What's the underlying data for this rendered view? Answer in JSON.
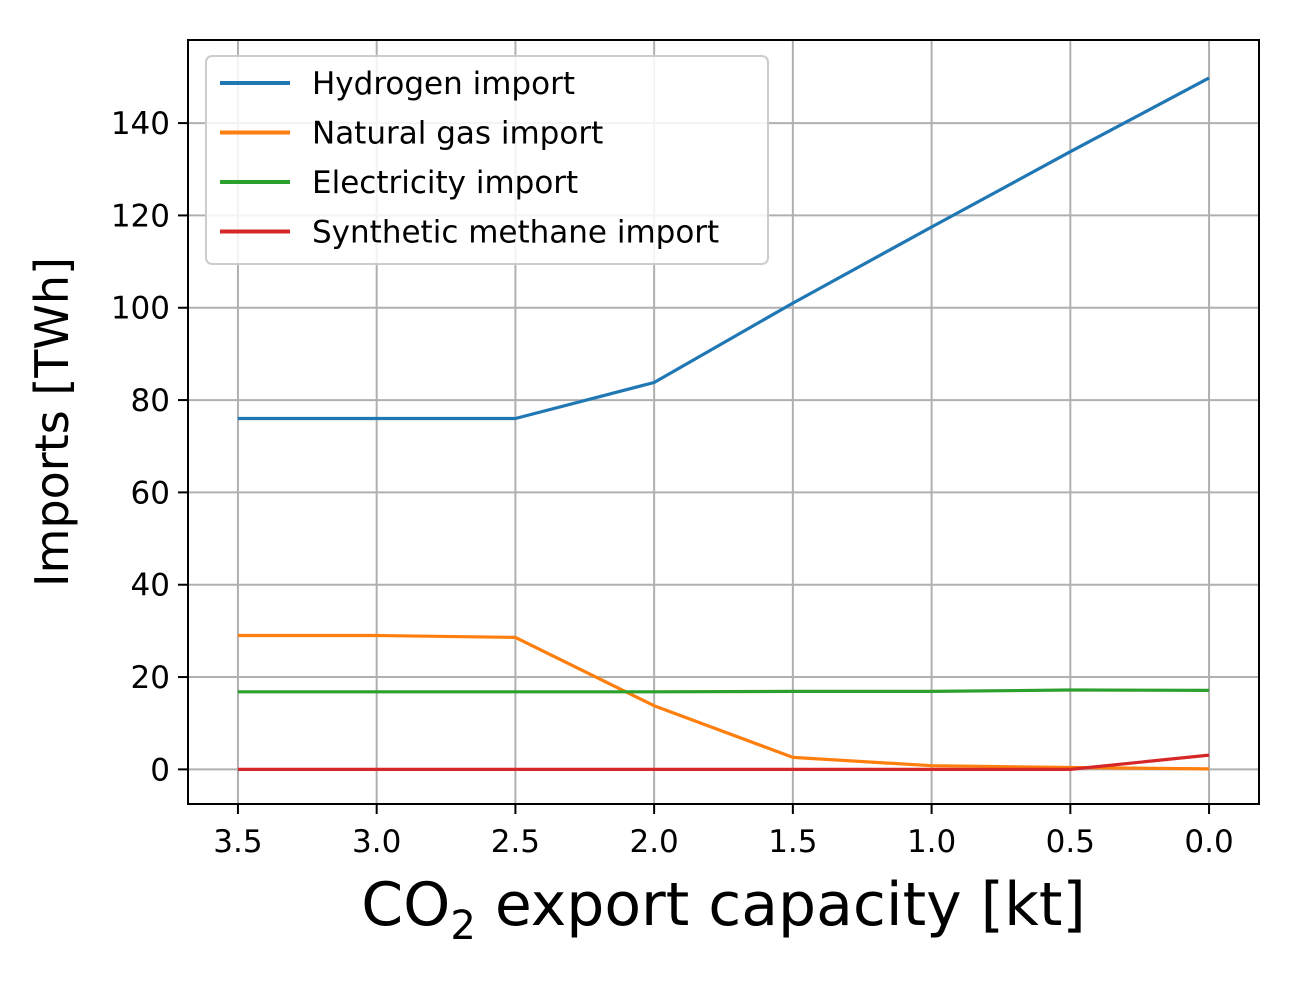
{
  "chart_data": {
    "type": "line",
    "xlabel": "CO",
    "xlabel_subscript": "2",
    "xlabel_suffix": " export capacity [kt]",
    "ylabel": "Imports [TWh]",
    "x": [
      3.5,
      3.0,
      2.5,
      2.0,
      1.5,
      1.0,
      0.5,
      0.0
    ],
    "x_reversed": true,
    "xlim": [
      3.68,
      -0.18
    ],
    "ylim": [
      -7.5,
      158
    ],
    "xticks": [
      "3.5",
      "3.0",
      "2.5",
      "2.0",
      "1.5",
      "1.0",
      "0.5",
      "0.0"
    ],
    "yticks": [
      "0",
      "20",
      "40",
      "60",
      "80",
      "100",
      "120",
      "140"
    ],
    "grid": true,
    "legend_position": "top-left",
    "series": [
      {
        "name": "Hydrogen import",
        "color": "#1f77b4",
        "values": [
          76,
          76,
          76,
          83.8,
          101,
          117.5,
          133.8,
          149.8
        ]
      },
      {
        "name": "Natural gas import",
        "color": "#ff7f0e",
        "values": [
          29,
          29,
          28.6,
          13.8,
          2.6,
          0.8,
          0.4,
          0.1
        ]
      },
      {
        "name": "Electricity import",
        "color": "#2ca02c",
        "values": [
          16.8,
          16.8,
          16.8,
          16.8,
          16.9,
          16.9,
          17.2,
          17.1
        ]
      },
      {
        "name": "Synthetic methane import",
        "color": "#d62728",
        "values": [
          0,
          0,
          0,
          0,
          0,
          0,
          0,
          3.1
        ]
      }
    ]
  }
}
